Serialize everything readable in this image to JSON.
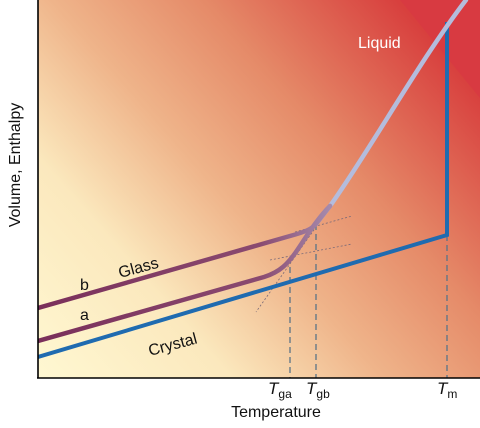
{
  "axes": {
    "ylabel": "Volume, Enthalpy",
    "xlabel": "Temperature"
  },
  "curves": {
    "liquid_label": "Liquid",
    "glass_label": "Glass",
    "crystal_label": "Crystal",
    "curve_b_label": "b",
    "curve_a_label": "a"
  },
  "ticks": {
    "t_ga": {
      "symbol": "T",
      "subscript": "ga"
    },
    "t_gb": {
      "symbol": "T",
      "subscript": "gb"
    },
    "t_m": {
      "symbol": "T",
      "subscript": "m"
    }
  },
  "colors": {
    "crystal": "#1f6bb0",
    "glass": "#7a3a60",
    "liquid": "#a8aed0",
    "background_cool": "#fff8d2",
    "background_warm": "#d8403e",
    "axis": "#000000"
  }
}
